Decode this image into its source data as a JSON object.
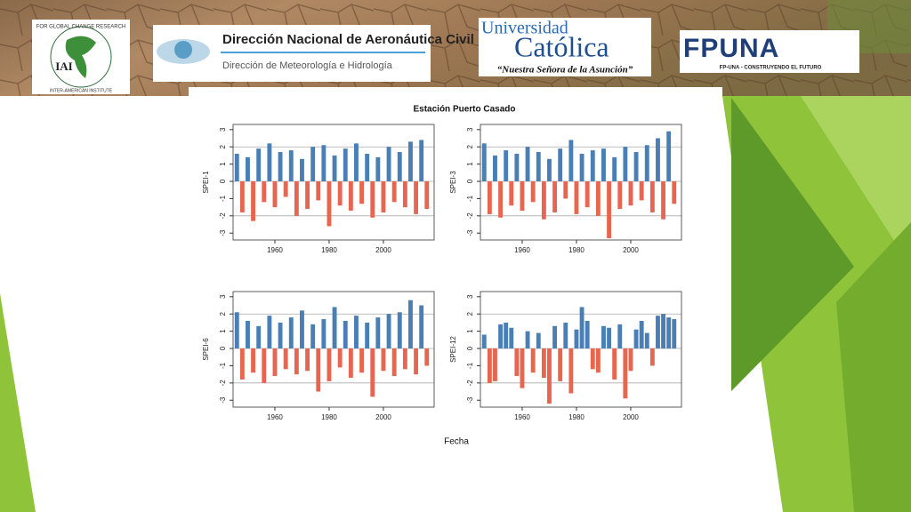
{
  "logos": {
    "iai": {
      "arc_top": "FOR GLOBAL CHANGE RESEARCH",
      "arc_bottom": "INTER-AMERICAN INSTITUTE",
      "name": "IAI"
    },
    "dinac": {
      "title": "Dirección Nacional de Aeronáutica Civil",
      "subtitle": "Dirección de Meteorología e Hidrología"
    },
    "uca": {
      "line1": "Universidad",
      "line2": "Católica",
      "motto": "“Nuestra Señora de la Asunción”"
    },
    "fpuna": {
      "name": "FPUNA",
      "slogan": "FP-UNA - CONSTRUYENDO EL FUTURO"
    }
  },
  "figure": {
    "title": "Estación Puerto Casado",
    "x_label": "Fecha"
  },
  "chart_data": [
    {
      "type": "bar",
      "y_label": "SPEI-1",
      "pos_color": "#4a7fb5",
      "neg_color": "#e8654f",
      "x": [
        1946,
        1948,
        1950,
        1952,
        1954,
        1956,
        1958,
        1960,
        1962,
        1964,
        1966,
        1968,
        1970,
        1972,
        1974,
        1976,
        1978,
        1980,
        1982,
        1984,
        1986,
        1988,
        1990,
        1992,
        1994,
        1996,
        1998,
        2000,
        2002,
        2004,
        2006,
        2008,
        2010,
        2012,
        2014,
        2016
      ],
      "values": [
        1.6,
        -1.8,
        1.4,
        -2.3,
        1.9,
        -1.2,
        2.2,
        -1.5,
        1.7,
        -0.9,
        1.8,
        -2.0,
        1.3,
        -1.6,
        2.0,
        -1.1,
        2.1,
        -2.6,
        1.5,
        -1.4,
        1.9,
        -1.7,
        2.2,
        -1.3,
        1.6,
        -2.1,
        1.4,
        -1.8,
        2.0,
        -1.2,
        1.7,
        -1.5,
        2.3,
        -1.9,
        2.4,
        -1.6
      ],
      "xlim": [
        1944.6,
        2018.7
      ],
      "ylim": [
        -3.4,
        3.3
      ],
      "xticks": [
        1960,
        1980,
        2000
      ],
      "yticks": [
        -3,
        -2,
        -1,
        0,
        1,
        2,
        3
      ],
      "hlines": [
        -2,
        0,
        2
      ]
    },
    {
      "type": "bar",
      "y_label": "SPEI-3",
      "pos_color": "#4a7fb5",
      "neg_color": "#e8654f",
      "x": [
        1946,
        1948,
        1950,
        1952,
        1954,
        1956,
        1958,
        1960,
        1962,
        1964,
        1966,
        1968,
        1970,
        1972,
        1974,
        1976,
        1978,
        1980,
        1982,
        1984,
        1986,
        1988,
        1990,
        1992,
        1994,
        1996,
        1998,
        2000,
        2002,
        2004,
        2006,
        2008,
        2010,
        2012,
        2014,
        2016
      ],
      "values": [
        2.2,
        -1.9,
        1.5,
        -2.1,
        1.8,
        -1.4,
        1.6,
        -1.7,
        2.0,
        -1.2,
        1.7,
        -2.2,
        1.3,
        -1.8,
        1.9,
        -1.0,
        2.4,
        -1.9,
        1.6,
        -1.5,
        1.8,
        -2.0,
        1.9,
        -3.3,
        1.4,
        -1.6,
        2.0,
        -1.4,
        1.7,
        -1.1,
        2.1,
        -1.8,
        2.5,
        -2.2,
        2.9,
        -1.3
      ],
      "xlim": [
        1944.6,
        2018.7
      ],
      "ylim": [
        -3.4,
        3.3
      ],
      "xticks": [
        1960,
        1980,
        2000
      ],
      "yticks": [
        -3,
        -2,
        -1,
        0,
        1,
        2,
        3
      ],
      "hlines": [
        -2,
        0,
        2
      ]
    },
    {
      "type": "bar",
      "y_label": "SPEI-6",
      "pos_color": "#4a7fb5",
      "neg_color": "#e8654f",
      "x": [
        1946,
        1948,
        1950,
        1952,
        1954,
        1956,
        1958,
        1960,
        1962,
        1964,
        1966,
        1968,
        1970,
        1972,
        1974,
        1976,
        1978,
        1980,
        1982,
        1984,
        1986,
        1988,
        1990,
        1992,
        1994,
        1996,
        1998,
        2000,
        2002,
        2004,
        2006,
        2008,
        2010,
        2012,
        2014,
        2016
      ],
      "values": [
        2.1,
        -1.8,
        1.6,
        -1.4,
        1.3,
        -2.0,
        1.9,
        -1.6,
        1.5,
        -1.2,
        1.8,
        -1.5,
        2.2,
        -1.3,
        1.4,
        -2.5,
        1.7,
        -1.9,
        2.4,
        -1.1,
        1.6,
        -1.7,
        1.9,
        -1.4,
        1.5,
        -2.8,
        1.8,
        -1.3,
        2.0,
        -1.6,
        2.1,
        -1.2,
        2.8,
        -1.5,
        2.5,
        -1.0
      ],
      "xlim": [
        1944.6,
        2018.7
      ],
      "ylim": [
        -3.4,
        3.3
      ],
      "xticks": [
        1960,
        1980,
        2000
      ],
      "yticks": [
        -3,
        -2,
        -1,
        0,
        1,
        2,
        3
      ],
      "hlines": [
        -2,
        0,
        2
      ]
    },
    {
      "type": "bar",
      "y_label": "SPEI-12",
      "pos_color": "#4a7fb5",
      "neg_color": "#e8654f",
      "x": [
        1946,
        1948,
        1950,
        1952,
        1954,
        1956,
        1958,
        1960,
        1962,
        1964,
        1966,
        1968,
        1970,
        1972,
        1974,
        1976,
        1978,
        1980,
        1982,
        1984,
        1986,
        1988,
        1990,
        1992,
        1994,
        1996,
        1998,
        2000,
        2002,
        2004,
        2006,
        2008,
        2010,
        2012,
        2014,
        2016
      ],
      "values": [
        0.8,
        -2.0,
        -1.9,
        1.4,
        1.5,
        1.2,
        -1.6,
        -2.3,
        1.0,
        -1.4,
        0.9,
        -1.7,
        -3.2,
        1.3,
        -1.9,
        1.5,
        -2.6,
        1.1,
        2.4,
        1.6,
        -1.2,
        -1.4,
        1.3,
        1.2,
        -1.8,
        1.4,
        -2.9,
        -1.3,
        1.1,
        1.6,
        0.9,
        -1.0,
        1.9,
        2.0,
        1.8,
        1.7
      ],
      "xlim": [
        1944.6,
        2018.7
      ],
      "ylim": [
        -3.4,
        3.3
      ],
      "xticks": [
        1960,
        1980,
        2000
      ],
      "yticks": [
        -3,
        -2,
        -1,
        0,
        1,
        2,
        3
      ],
      "hlines": [
        -2,
        0,
        2
      ]
    }
  ]
}
